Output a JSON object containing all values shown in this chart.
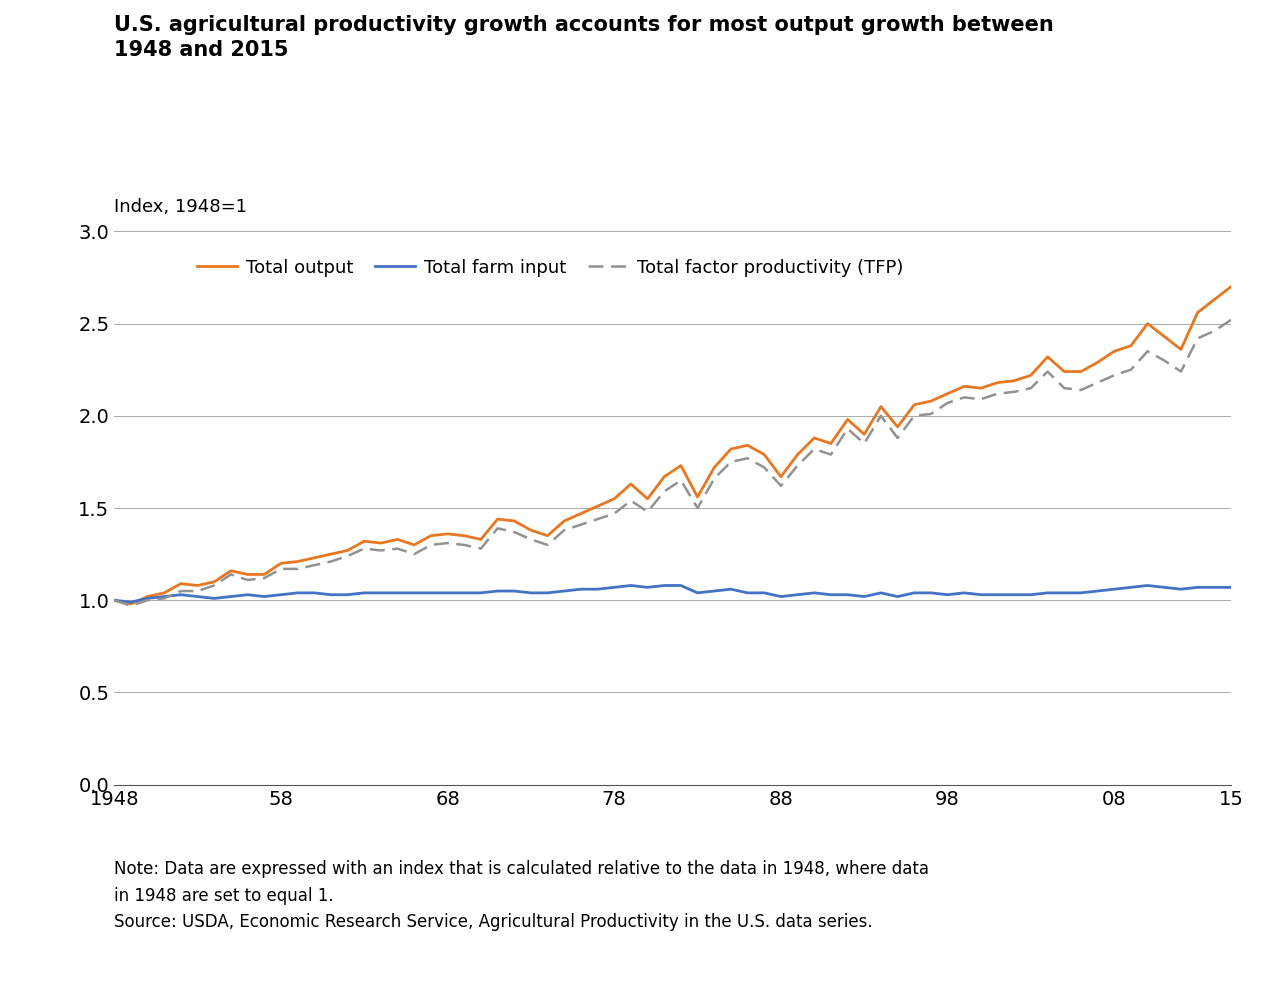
{
  "title": "U.S. agricultural productivity growth accounts for most output growth between\n1948 and 2015",
  "ylabel": "Index, 1948=1",
  "note": "Note: Data are expressed with an index that is calculated relative to the data in 1948, where data\nin 1948 are set to equal 1.\nSource: USDA, Economic Research Service, Agricultural Productivity in the U.S. data series.",
  "years": [
    1948,
    1949,
    1950,
    1951,
    1952,
    1953,
    1954,
    1955,
    1956,
    1957,
    1958,
    1959,
    1960,
    1961,
    1962,
    1963,
    1964,
    1965,
    1966,
    1967,
    1968,
    1969,
    1970,
    1971,
    1972,
    1973,
    1974,
    1975,
    1976,
    1977,
    1978,
    1979,
    1980,
    1981,
    1982,
    1983,
    1984,
    1985,
    1986,
    1987,
    1988,
    1989,
    1990,
    1991,
    1992,
    1993,
    1994,
    1995,
    1996,
    1997,
    1998,
    1999,
    2000,
    2001,
    2002,
    2003,
    2004,
    2005,
    2006,
    2007,
    2008,
    2009,
    2010,
    2011,
    2012,
    2013,
    2014,
    2015
  ],
  "total_output": [
    1.0,
    0.98,
    1.02,
    1.04,
    1.09,
    1.08,
    1.1,
    1.16,
    1.14,
    1.14,
    1.2,
    1.21,
    1.23,
    1.25,
    1.27,
    1.32,
    1.31,
    1.33,
    1.3,
    1.35,
    1.36,
    1.35,
    1.33,
    1.44,
    1.43,
    1.38,
    1.35,
    1.43,
    1.47,
    1.51,
    1.55,
    1.63,
    1.55,
    1.67,
    1.73,
    1.56,
    1.72,
    1.82,
    1.84,
    1.79,
    1.67,
    1.79,
    1.88,
    1.85,
    1.98,
    1.9,
    2.05,
    1.94,
    2.06,
    2.08,
    2.12,
    2.16,
    2.15,
    2.18,
    2.19,
    2.22,
    2.32,
    2.24,
    2.24,
    2.29,
    2.35,
    2.38,
    2.5,
    2.43,
    2.36,
    2.56,
    2.63,
    2.7
  ],
  "total_farm_input": [
    1.0,
    0.99,
    1.01,
    1.02,
    1.03,
    1.02,
    1.01,
    1.02,
    1.03,
    1.02,
    1.03,
    1.04,
    1.04,
    1.03,
    1.03,
    1.04,
    1.04,
    1.04,
    1.04,
    1.04,
    1.04,
    1.04,
    1.04,
    1.05,
    1.05,
    1.04,
    1.04,
    1.05,
    1.06,
    1.06,
    1.07,
    1.08,
    1.07,
    1.08,
    1.08,
    1.04,
    1.05,
    1.06,
    1.04,
    1.04,
    1.02,
    1.03,
    1.04,
    1.03,
    1.03,
    1.02,
    1.04,
    1.02,
    1.04,
    1.04,
    1.03,
    1.04,
    1.03,
    1.03,
    1.03,
    1.03,
    1.04,
    1.04,
    1.04,
    1.05,
    1.06,
    1.07,
    1.08,
    1.07,
    1.06,
    1.07,
    1.07,
    1.07
  ],
  "tfp": [
    1.0,
    0.97,
    1.0,
    1.01,
    1.05,
    1.05,
    1.08,
    1.14,
    1.11,
    1.12,
    1.17,
    1.17,
    1.19,
    1.21,
    1.24,
    1.28,
    1.27,
    1.28,
    1.25,
    1.3,
    1.31,
    1.3,
    1.28,
    1.39,
    1.37,
    1.33,
    1.3,
    1.38,
    1.41,
    1.44,
    1.47,
    1.54,
    1.48,
    1.59,
    1.65,
    1.5,
    1.66,
    1.75,
    1.77,
    1.72,
    1.62,
    1.73,
    1.82,
    1.79,
    1.93,
    1.85,
    2.0,
    1.88,
    2.0,
    2.01,
    2.07,
    2.1,
    2.09,
    2.12,
    2.13,
    2.15,
    2.24,
    2.15,
    2.14,
    2.18,
    2.22,
    2.25,
    2.35,
    2.3,
    2.24,
    2.42,
    2.46,
    2.52
  ],
  "output_color": "#E87722",
  "input_color": "#4472C4",
  "tfp_color": "#929292",
  "output_label": "Total output",
  "input_label": "Total farm input",
  "tfp_label": "Total factor productivity (TFP)",
  "ylim": [
    0.0,
    3.0
  ],
  "yticks": [
    0.0,
    0.5,
    1.0,
    1.5,
    2.0,
    2.5,
    3.0
  ],
  "xticks": [
    1948,
    1958,
    1968,
    1978,
    1988,
    1998,
    2008,
    2015
  ],
  "xtick_labels": [
    "1948",
    "58",
    "68",
    "78",
    "88",
    "98",
    "08",
    "15"
  ],
  "background_color": "#FFFFFF",
  "grid_color": "#AAAAAA"
}
